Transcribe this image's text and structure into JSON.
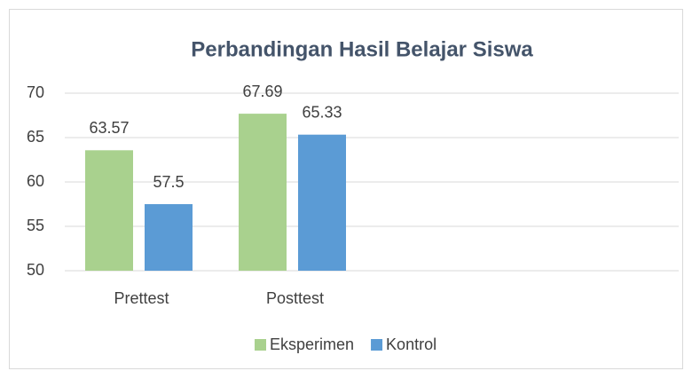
{
  "chart_data": {
    "type": "bar",
    "title": "Perbandingan Hasil Belajar Siswa",
    "categories": [
      "Prettest",
      "Posttest",
      null,
      null
    ],
    "series": [
      {
        "name": "Eksperimen",
        "color": "#a9d18e",
        "values": [
          63.57,
          67.69,
          null,
          null
        ]
      },
      {
        "name": "Kontrol",
        "color": "#5b9bd5",
        "values": [
          57.5,
          65.33,
          null,
          null
        ]
      }
    ],
    "ylim": [
      50,
      70
    ],
    "yticks": [
      50,
      55,
      60,
      65,
      70
    ],
    "grid": true,
    "legend": "bottom"
  }
}
